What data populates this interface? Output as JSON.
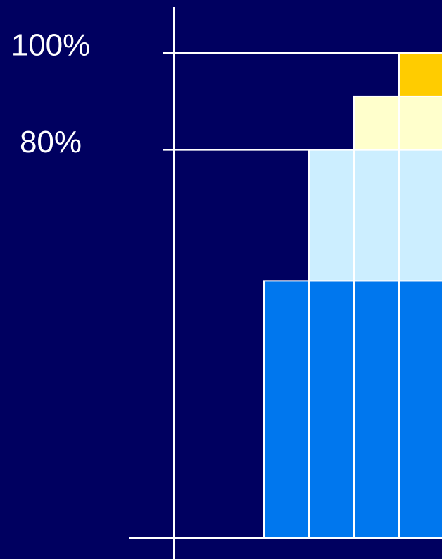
{
  "chart_data": {
    "type": "stacked-bar",
    "categories": [
      null,
      null,
      null,
      null
    ],
    "series": [
      {
        "color": "#0077ee",
        "values": [
          53,
          53,
          53,
          53
        ]
      },
      {
        "color": "#cceeff",
        "values": [
          null,
          27,
          27,
          27
        ]
      },
      {
        "color": "#ffffcc",
        "values": [
          null,
          null,
          11,
          11
        ]
      },
      {
        "color": "#ffcc00",
        "values": [
          null,
          null,
          null,
          9
        ]
      }
    ],
    "ylim": [
      0,
      100
    ],
    "yticks": [
      {
        "value": 80,
        "label": "80%"
      },
      {
        "value": 100,
        "label": "100%"
      }
    ],
    "grid": true
  }
}
